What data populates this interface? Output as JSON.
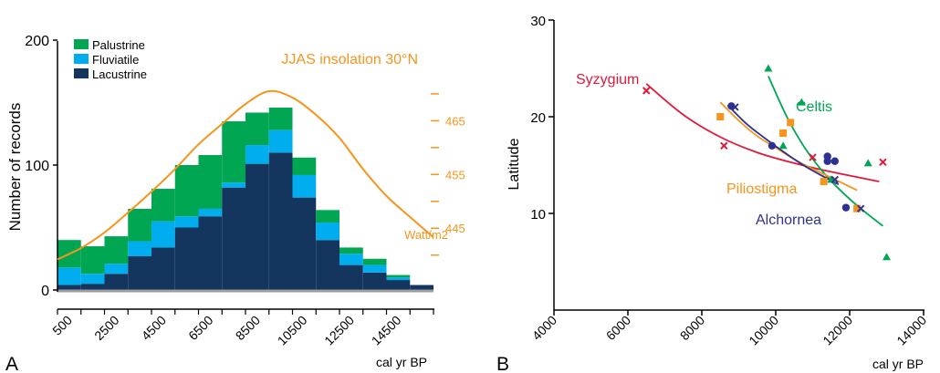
{
  "colors": {
    "palustrine": "#00a651",
    "fluviatile": "#00aeef",
    "lacustrine": "#14365e",
    "insolation": "#f7941d",
    "syzygium": "#e0193a",
    "celtis": "#00a651",
    "piliostigma": "#f7941d",
    "alchornea": "#2e3192",
    "axis": "#000000",
    "baseline": "#9e9e9e"
  },
  "chart_data": [
    {
      "panel": "A",
      "type": "bar",
      "stacked": true,
      "ylabel": "Number of records",
      "xlabel": "cal yr BP",
      "ylim": [
        0,
        200
      ],
      "yticks": [
        "0",
        "100",
        "200"
      ],
      "xtick_labels": [
        "500",
        "2500",
        "4500",
        "6500",
        "8500",
        "10500",
        "12500",
        "14500"
      ],
      "bin_start": [
        0,
        1000,
        2000,
        3000,
        4000,
        5000,
        6000,
        7000,
        8000,
        9000,
        10000,
        11000,
        12000,
        13000,
        14000,
        15000
      ],
      "bin_width": 1000,
      "legend": [
        "Palustrine",
        "Fluviatile",
        "Lacustrine"
      ],
      "legend_position": "top-left",
      "series": [
        {
          "name": "Lacustrine",
          "values": [
            4,
            5,
            13,
            27,
            34,
            50,
            59,
            82,
            101,
            110,
            74,
            40,
            20,
            14,
            8,
            4
          ]
        },
        {
          "name": "Fluviatile",
          "values": [
            14,
            8,
            8,
            12,
            21,
            9,
            6,
            4,
            15,
            18,
            18,
            14,
            9,
            6,
            2,
            0
          ]
        },
        {
          "name": "Palustrine",
          "values": [
            22,
            22,
            22,
            26,
            26,
            41,
            43,
            49,
            26,
            18,
            14,
            10,
            5,
            5,
            2,
            0
          ]
        }
      ],
      "insolation": {
        "label": "JJAS insolation 30°N",
        "unit": "Watt/m2",
        "ticks": [
          "465",
          "455",
          "445"
        ],
        "tick_values": [
          465,
          455,
          445
        ],
        "x": [
          0,
          1000,
          2000,
          3000,
          4000,
          5000,
          6000,
          7000,
          8000,
          9000,
          10000,
          11000,
          12000,
          13000,
          14000,
          15000,
          16000
        ],
        "y": [
          439.2,
          441.3,
          444.2,
          447.9,
          451.8,
          456.0,
          460.6,
          464.4,
          468.1,
          470.5,
          469.3,
          466.1,
          461.8,
          456.0,
          451.0,
          447.1,
          443.3
        ],
        "ylim": [
          433.5,
          480
        ]
      }
    },
    {
      "panel": "B",
      "type": "scatter",
      "ylabel": "Latitude",
      "xlabel": "cal yr BP",
      "xlim": [
        4000,
        14000
      ],
      "ylim": [
        0,
        30
      ],
      "xtick_labels": [
        "4000",
        "6000",
        "8000",
        "10000",
        "12000",
        "14000"
      ],
      "ytick_labels": [
        "10",
        "20",
        "30"
      ],
      "series": [
        {
          "name": "Syzygium",
          "marker": "x",
          "points": [
            [
              6500,
              22.7
            ],
            [
              8600,
              17.0
            ],
            [
              11000,
              15.8
            ],
            [
              12900,
              15.3
            ]
          ],
          "fit": [
            [
              6500,
              23.4
            ],
            [
              7500,
              20.2
            ],
            [
              8500,
              17.9
            ],
            [
              9500,
              16.3
            ],
            [
              10500,
              15.2
            ],
            [
              11500,
              14.3
            ],
            [
              12800,
              13.3
            ]
          ]
        },
        {
          "name": "Celtis",
          "marker": "triangle",
          "points": [
            [
              9800,
              25.0
            ],
            [
              10200,
              17.0
            ],
            [
              10700,
              21.5
            ],
            [
              11500,
              13.5
            ],
            [
              12500,
              15.2
            ],
            [
              13000,
              5.5
            ]
          ],
          "fit": [
            [
              9800,
              24.2
            ],
            [
              10300,
              20.0
            ],
            [
              10800,
              16.7
            ],
            [
              11300,
              14.2
            ],
            [
              11800,
              12.2
            ],
            [
              12300,
              10.5
            ],
            [
              12900,
              8.7
            ]
          ]
        },
        {
          "name": "Piliostigma",
          "marker": "square",
          "points": [
            [
              8500,
              20.0
            ],
            [
              10200,
              18.3
            ],
            [
              10400,
              19.4
            ],
            [
              11300,
              13.3
            ],
            [
              12200,
              10.5
            ]
          ],
          "fit": [
            [
              8500,
              21.5
            ],
            [
              9000,
              19.6
            ],
            [
              9500,
              18.0
            ],
            [
              10000,
              16.8
            ],
            [
              10500,
              15.6
            ],
            [
              11000,
              14.6
            ],
            [
              11500,
              13.7
            ],
            [
              12200,
              12.4
            ]
          ]
        },
        {
          "name": "Alchornea",
          "marker": "circle",
          "points": [
            [
              8800,
              21.1
            ],
            [
              9900,
              17.0
            ],
            [
              11400,
              15.9
            ],
            [
              11400,
              15.4
            ],
            [
              11600,
              15.4
            ],
            [
              11900,
              10.6
            ]
          ],
          "crosses": [
            [
              8900,
              21.0
            ],
            [
              11600,
              13.5
            ],
            [
              12300,
              10.5
            ]
          ],
          "fit": [
            [
              8700,
              21.2
            ],
            [
              9200,
              19.3
            ],
            [
              9700,
              17.8
            ],
            [
              10200,
              16.4
            ],
            [
              10700,
              15.1
            ],
            [
              11200,
              14.0
            ],
            [
              11700,
              13.0
            ]
          ]
        }
      ]
    }
  ],
  "panel_labels": {
    "a": "A",
    "b": "B"
  }
}
